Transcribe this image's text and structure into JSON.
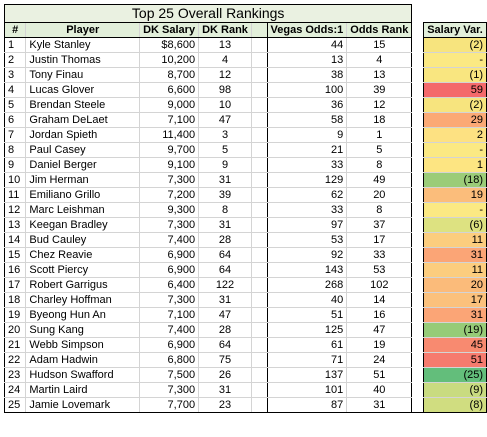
{
  "title": "Top 25 Overall Rankings",
  "headers": {
    "num": "#",
    "player": "Player",
    "dk_salary": "DK Salary",
    "dk_rank": "DK Rank",
    "vegas_odds": "Vegas Odds:1",
    "odds_rank": "Odds Rank",
    "salary_var": "Salary Var."
  },
  "rows": [
    {
      "n": "1",
      "player": "Kyle Stanley",
      "salary": "$8,600",
      "dkrank": "13",
      "odds": "44",
      "oddsrank": "15",
      "var": "(2)",
      "color": "#f7e47e"
    },
    {
      "n": "2",
      "player": "Justin Thomas",
      "salary": "10,200",
      "dkrank": "4",
      "odds": "13",
      "oddsrank": "4",
      "var": "-",
      "color": "#fbe983"
    },
    {
      "n": "3",
      "player": "Tony Finau",
      "salary": "8,700",
      "dkrank": "12",
      "odds": "38",
      "oddsrank": "13",
      "var": "(1)",
      "color": "#f9e680"
    },
    {
      "n": "4",
      "player": "Lucas Glover",
      "salary": "6,600",
      "dkrank": "98",
      "odds": "100",
      "oddsrank": "39",
      "var": "59",
      "color": "#f4696b"
    },
    {
      "n": "5",
      "player": "Brendan Steele",
      "salary": "9,000",
      "dkrank": "10",
      "odds": "36",
      "oddsrank": "12",
      "var": "(2)",
      "color": "#f7e47e"
    },
    {
      "n": "6",
      "player": "Graham DeLaet",
      "salary": "7,100",
      "dkrank": "47",
      "odds": "58",
      "oddsrank": "18",
      "var": "29",
      "color": "#fba975"
    },
    {
      "n": "7",
      "player": "Jordan Spieth",
      "salary": "11,400",
      "dkrank": "3",
      "odds": "9",
      "oddsrank": "1",
      "var": "2",
      "color": "#fde182"
    },
    {
      "n": "8",
      "player": "Paul Casey",
      "salary": "9,700",
      "dkrank": "5",
      "odds": "21",
      "oddsrank": "5",
      "var": "-",
      "color": "#fbe983"
    },
    {
      "n": "9",
      "player": "Daniel Berger",
      "salary": "9,100",
      "dkrank": "9",
      "odds": "33",
      "oddsrank": "8",
      "var": "1",
      "color": "#fde582"
    },
    {
      "n": "10",
      "player": "Jim Herman",
      "salary": "7,300",
      "dkrank": "31",
      "odds": "129",
      "oddsrank": "49",
      "var": "(18)",
      "color": "#9bcc78"
    },
    {
      "n": "11",
      "player": "Emiliano Grillo",
      "salary": "7,200",
      "dkrank": "39",
      "odds": "62",
      "oddsrank": "20",
      "var": "19",
      "color": "#fbbd7b"
    },
    {
      "n": "12",
      "player": "Marc Leishman",
      "salary": "9,300",
      "dkrank": "8",
      "odds": "33",
      "oddsrank": "8",
      "var": "-",
      "color": "#fbe983"
    },
    {
      "n": "13",
      "player": "Keegan Bradley",
      "salary": "7,300",
      "dkrank": "31",
      "odds": "97",
      "oddsrank": "37",
      "var": "(6)",
      "color": "#dde281"
    },
    {
      "n": "14",
      "player": "Bud Cauley",
      "salary": "7,400",
      "dkrank": "28",
      "odds": "53",
      "oddsrank": "17",
      "var": "11",
      "color": "#fccd7e"
    },
    {
      "n": "15",
      "player": "Chez Reavie",
      "salary": "6,900",
      "dkrank": "64",
      "odds": "92",
      "oddsrank": "33",
      "var": "31",
      "color": "#fba576"
    },
    {
      "n": "16",
      "player": "Scott Piercy",
      "salary": "6,900",
      "dkrank": "64",
      "odds": "143",
      "oddsrank": "53",
      "var": "11",
      "color": "#fccd7e"
    },
    {
      "n": "17",
      "player": "Robert Garrigus",
      "salary": "6,400",
      "dkrank": "122",
      "odds": "268",
      "oddsrank": "102",
      "var": "20",
      "color": "#fbbb7a"
    },
    {
      "n": "18",
      "player": "Charley Hoffman",
      "salary": "7,300",
      "dkrank": "31",
      "odds": "40",
      "oddsrank": "14",
      "var": "17",
      "color": "#fbc17c"
    },
    {
      "n": "19",
      "player": "Byeong Hun An",
      "salary": "7,100",
      "dkrank": "47",
      "odds": "51",
      "oddsrank": "16",
      "var": "31",
      "color": "#fba576"
    },
    {
      "n": "20",
      "player": "Sung Kang",
      "salary": "7,400",
      "dkrank": "28",
      "odds": "125",
      "oddsrank": "47",
      "var": "(19)",
      "color": "#96cb77"
    },
    {
      "n": "21",
      "player": "Webb Simpson",
      "salary": "6,900",
      "dkrank": "64",
      "odds": "61",
      "oddsrank": "19",
      "var": "45",
      "color": "#f88a70"
    },
    {
      "n": "22",
      "player": "Adam Hadwin",
      "salary": "6,800",
      "dkrank": "75",
      "odds": "71",
      "oddsrank": "24",
      "var": "51",
      "color": "#f67b6e"
    },
    {
      "n": "23",
      "player": "Hudson Swafford",
      "salary": "7,500",
      "dkrank": "26",
      "odds": "137",
      "oddsrank": "51",
      "var": "(25)",
      "color": "#63be7b"
    },
    {
      "n": "24",
      "player": "Martin Laird",
      "salary": "7,300",
      "dkrank": "31",
      "odds": "101",
      "oddsrank": "40",
      "var": "(9)",
      "color": "#c9db80"
    },
    {
      "n": "25",
      "player": "Jamie Lovemark",
      "salary": "7,700",
      "dkrank": "23",
      "odds": "87",
      "oddsrank": "31",
      "var": "(8)",
      "color": "#d0dd80"
    }
  ]
}
